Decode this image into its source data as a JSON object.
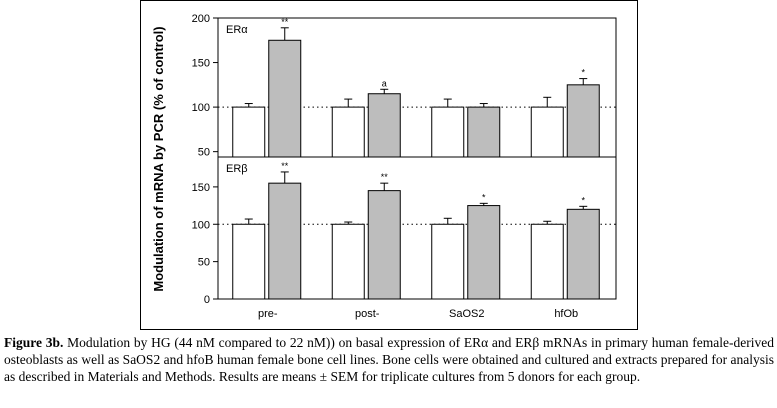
{
  "caption": {
    "label": "Figure 3b.",
    "text": " Modulation by HG (44 nM compared to 22 nM)) on basal expression of ERα and ERβ mRNAs in primary human female-derived osteoblasts as well as SaOS2 and hfoB human female bone cell lines. Bone cells were obtained and cultured and extracts prepared for analysis as described in Materials and Methods. Results are means ± SEM for triplicate cultures from 5 donors for each group."
  },
  "chart_data": {
    "type": "bar",
    "ylabel": "Modulation of mRNA by PCR (% of control)",
    "categories": [
      "pre-",
      "post-",
      "SaOS2",
      "hfOb"
    ],
    "reference_line": 100,
    "panels": [
      {
        "label": "ERα",
        "ylim": [
          44,
          200
        ],
        "yticks": [
          50,
          100,
          150,
          200
        ],
        "series": [
          {
            "name": "",
            "color": "#ffffff",
            "values": [
              100,
              100,
              100,
              100
            ],
            "errors": [
              4,
              9,
              9,
              11
            ]
          },
          {
            "name": "",
            "color": "#bdbdbd",
            "values": [
              175,
              115,
              100,
              125
            ],
            "errors": [
              14,
              5,
              4,
              7
            ]
          }
        ],
        "significance": [
          "**",
          "a",
          "",
          "*"
        ]
      },
      {
        "label": "ERβ",
        "ylim": [
          0,
          190
        ],
        "yticks": [
          0,
          50,
          100,
          150
        ],
        "series": [
          {
            "name": "",
            "color": "#ffffff",
            "values": [
              100,
              100,
              100,
              100
            ],
            "errors": [
              7,
              3,
              8,
              4
            ]
          },
          {
            "name": "",
            "color": "#bdbdbd",
            "values": [
              155,
              145,
              125,
              120
            ],
            "errors": [
              15,
              10,
              3,
              4
            ]
          }
        ],
        "significance": [
          "**",
          "**",
          "*",
          "*"
        ]
      }
    ]
  },
  "axis_ticks": {
    "top_panel": [
      "50",
      "100",
      "150",
      "200"
    ],
    "bottom_panel": [
      "0",
      "50",
      "100",
      "150"
    ]
  }
}
